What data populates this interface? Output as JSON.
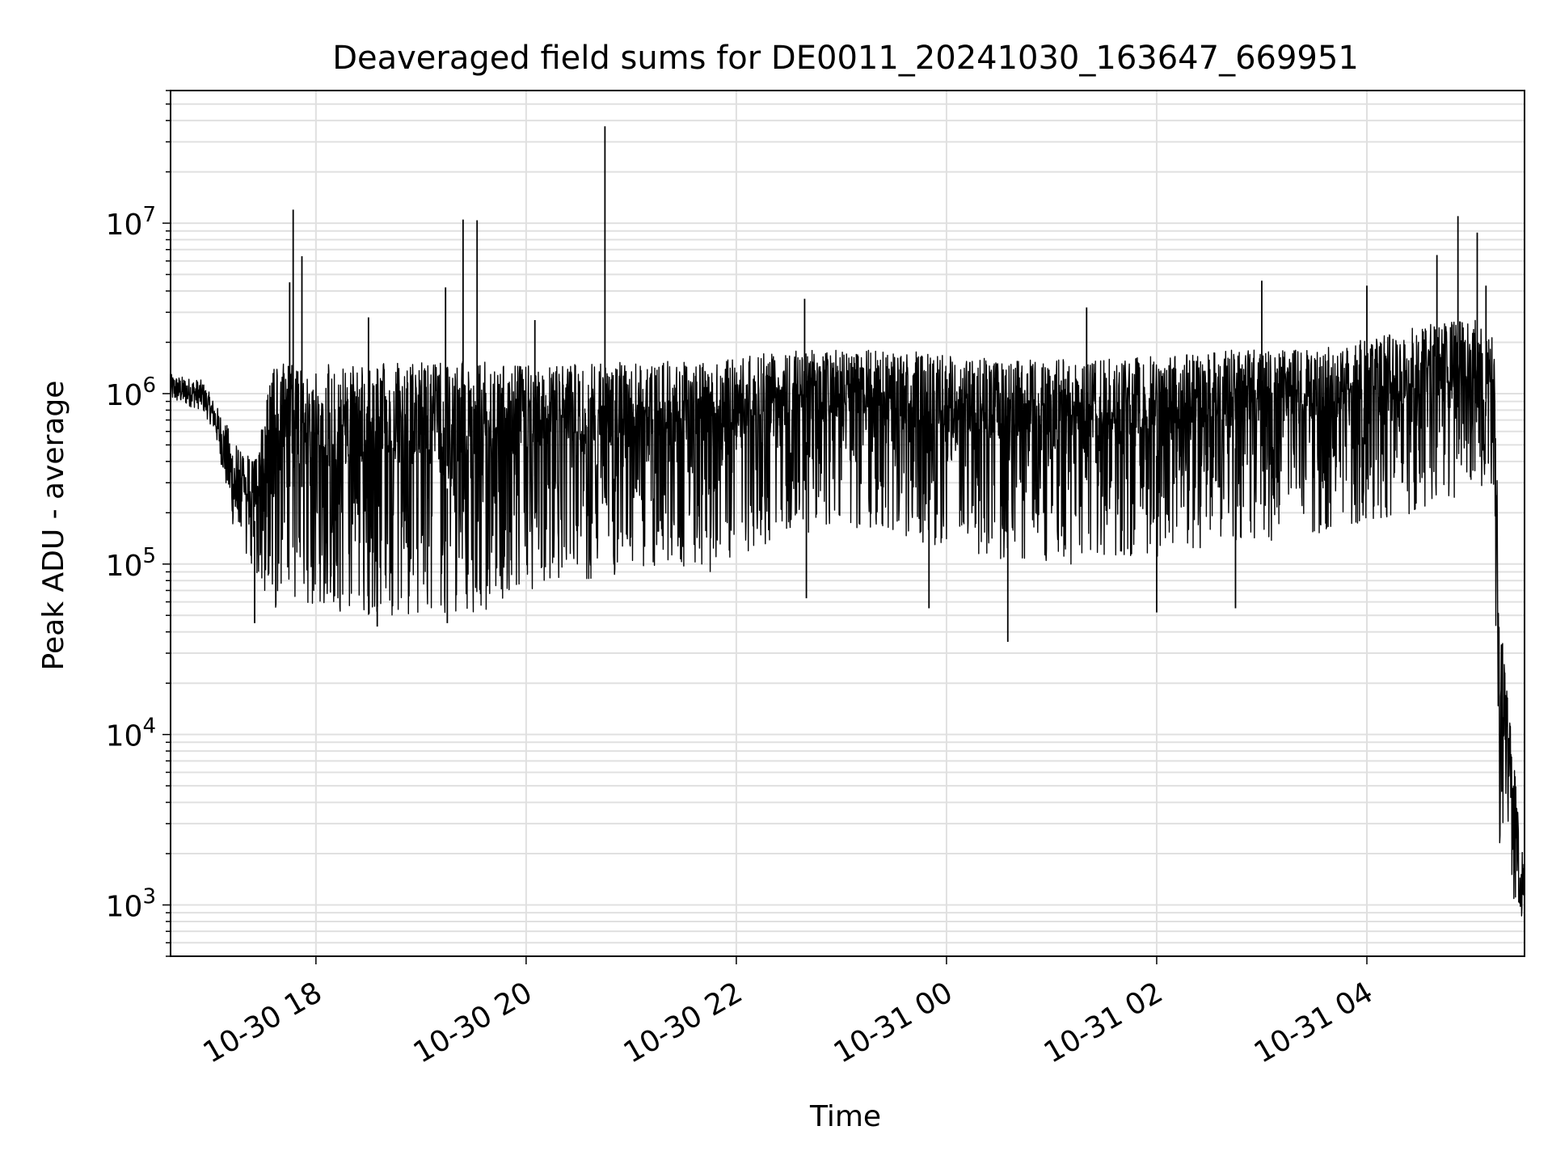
{
  "chart_data": {
    "type": "line",
    "title": "Deaveraged field sums for DE0011_20241030_163647_669951",
    "xlabel": "Time",
    "ylabel": "Peak ADU - average",
    "y_scale": "log",
    "ylim": [
      500,
      60000000
    ],
    "xlim": [
      "2024-10-30T16:37",
      "2024-10-31T05:30"
    ],
    "grid": true,
    "line_color": "#000000",
    "grid_color": "#e0e0e0",
    "x_ticks": [
      {
        "value": "2024-10-30T18:00",
        "label": "10-30 18"
      },
      {
        "value": "2024-10-30T20:00",
        "label": "10-30 20"
      },
      {
        "value": "2024-10-30T22:00",
        "label": "10-30 22"
      },
      {
        "value": "2024-10-31T00:00",
        "label": "10-31 00"
      },
      {
        "value": "2024-10-31T02:00",
        "label": "10-31 02"
      },
      {
        "value": "2024-10-31T04:00",
        "label": "10-31 04"
      }
    ],
    "y_ticks": [
      {
        "value": 1000,
        "base": "10",
        "exp": "3"
      },
      {
        "value": 10000,
        "base": "10",
        "exp": "4"
      },
      {
        "value": 100000,
        "base": "10",
        "exp": "5"
      },
      {
        "value": 1000000,
        "base": "10",
        "exp": "6"
      },
      {
        "value": 10000000,
        "base": "10",
        "exp": "7"
      }
    ],
    "series": [
      {
        "envelope": [
          {
            "x": "2024-10-30T16:37",
            "low": 900000,
            "high": 1300000
          },
          {
            "x": "2024-10-30T16:55",
            "low": 800000,
            "high": 1200000
          },
          {
            "x": "2024-10-30T17:02",
            "low": 600000,
            "high": 900000
          },
          {
            "x": "2024-10-30T17:08",
            "low": 300000,
            "high": 700000
          },
          {
            "x": "2024-10-30T17:15",
            "low": 120000,
            "high": 500000
          },
          {
            "x": "2024-10-30T17:25",
            "low": 80000,
            "high": 400000
          },
          {
            "x": "2024-10-30T17:35",
            "low": 55000,
            "high": 1500000
          },
          {
            "x": "2024-10-30T18:30",
            "low": 50000,
            "high": 1500000
          },
          {
            "x": "2024-10-30T19:30",
            "low": 50000,
            "high": 1550000
          },
          {
            "x": "2024-10-30T20:00",
            "low": 70000,
            "high": 1500000
          },
          {
            "x": "2024-10-30T21:00",
            "low": 90000,
            "high": 1550000
          },
          {
            "x": "2024-10-30T21:45",
            "low": 90000,
            "high": 1550000
          },
          {
            "x": "2024-10-30T22:30",
            "low": 150000,
            "high": 1800000
          },
          {
            "x": "2024-10-30T23:30",
            "low": 150000,
            "high": 1800000
          },
          {
            "x": "2024-10-31T00:30",
            "low": 100000,
            "high": 1600000
          },
          {
            "x": "2024-10-31T01:30",
            "low": 100000,
            "high": 1600000
          },
          {
            "x": "2024-10-31T02:30",
            "low": 120000,
            "high": 1800000
          },
          {
            "x": "2024-10-31T03:30",
            "low": 150000,
            "high": 1800000
          },
          {
            "x": "2024-10-31T04:30",
            "low": 200000,
            "high": 2500000
          },
          {
            "x": "2024-10-31T05:10",
            "low": 300000,
            "high": 3000000
          },
          {
            "x": "2024-10-31T05:13",
            "low": 100000,
            "high": 1500000
          },
          {
            "x": "2024-10-31T05:16",
            "low": 1000,
            "high": 50000
          },
          {
            "x": "2024-10-31T05:30",
            "low": 800,
            "high": 1500
          }
        ],
        "spikes": [
          {
            "x": "2024-10-30T17:47",
            "value": 12000000
          },
          {
            "x": "2024-10-30T17:52",
            "value": 6400000
          },
          {
            "x": "2024-10-30T17:45",
            "value": 4500000
          },
          {
            "x": "2024-10-30T18:30",
            "value": 2800000
          },
          {
            "x": "2024-10-30T19:14",
            "value": 4200000
          },
          {
            "x": "2024-10-30T19:24",
            "value": 10500000
          },
          {
            "x": "2024-10-30T19:32",
            "value": 10400000
          },
          {
            "x": "2024-10-30T20:05",
            "value": 2700000
          },
          {
            "x": "2024-10-30T20:45",
            "value": 37000000
          },
          {
            "x": "2024-10-30T22:39",
            "value": 3600000
          },
          {
            "x": "2024-10-31T01:20",
            "value": 3200000
          },
          {
            "x": "2024-10-31T03:00",
            "value": 4600000
          },
          {
            "x": "2024-10-31T04:00",
            "value": 4300000
          },
          {
            "x": "2024-10-31T04:40",
            "value": 6500000
          },
          {
            "x": "2024-10-31T04:52",
            "value": 11000000
          },
          {
            "x": "2024-10-31T05:03",
            "value": 8800000
          },
          {
            "x": "2024-10-31T05:08",
            "value": 4300000
          }
        ],
        "dips": [
          {
            "x": "2024-10-30T17:25",
            "value": 45000
          },
          {
            "x": "2024-10-30T18:35",
            "value": 43000
          },
          {
            "x": "2024-10-30T19:15",
            "value": 45000
          },
          {
            "x": "2024-10-30T22:40",
            "value": 63000
          },
          {
            "x": "2024-10-30T23:50",
            "value": 55000
          },
          {
            "x": "2024-10-31T00:35",
            "value": 35000
          },
          {
            "x": "2024-10-31T02:00",
            "value": 52000
          },
          {
            "x": "2024-10-31T02:45",
            "value": 55000
          }
        ]
      }
    ]
  }
}
